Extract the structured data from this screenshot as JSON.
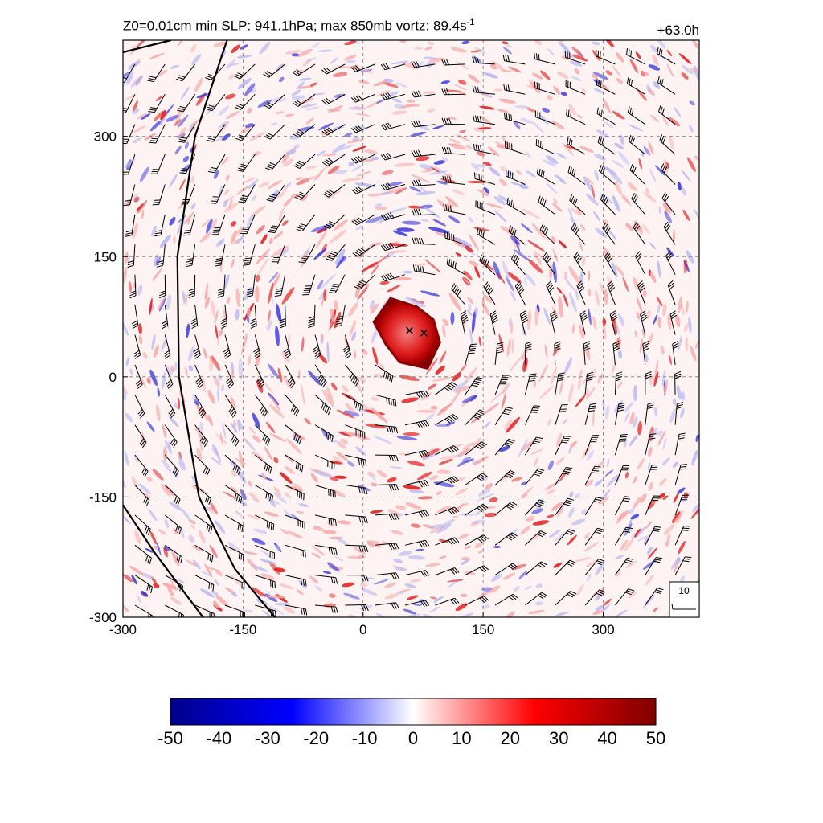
{
  "header": {
    "title_prefix": "Z0=0.01cm  min SLP: 941.1hPa; max 850mb vortz:  89.4s",
    "title_exponent": "-1",
    "time_label": "+63.0h"
  },
  "chart_data": {
    "type": "heatmap",
    "field": "vorticity",
    "xlim": [
      -300,
      420
    ],
    "ylim": [
      -300,
      420
    ],
    "x_ticks": [
      -300,
      -150,
      0,
      150,
      300
    ],
    "y_ticks": [
      -300,
      -150,
      0,
      150,
      300
    ],
    "x_tick_labels": [
      "-300",
      "-150",
      "0",
      "150",
      "300"
    ],
    "y_tick_labels": [
      "-300",
      "-150",
      "0",
      "150",
      "300"
    ],
    "grid": true,
    "storm_center_markers": [
      {
        "label": "×",
        "x": 58,
        "y": 58
      },
      {
        "label": "×",
        "x": 76,
        "y": 55
      }
    ],
    "eyewall_center": {
      "x": 57,
      "y": 55
    },
    "eyewall_radius": 48,
    "wind_barb_reference": "10",
    "coastlines": [
      {
        "name": "inner",
        "points": [
          [
            -170,
            420
          ],
          [
            -210,
            300
          ],
          [
            -232,
            150
          ],
          [
            -230,
            0
          ],
          [
            -205,
            -150
          ],
          [
            -160,
            -240
          ],
          [
            -110,
            -300
          ]
        ]
      },
      {
        "name": "outer",
        "points": [
          [
            -300,
            405
          ],
          [
            -240,
            420
          ]
        ]
      },
      {
        "name": "lower",
        "points": [
          [
            -300,
            -160
          ],
          [
            -260,
            -220
          ],
          [
            -200,
            -300
          ]
        ]
      }
    ],
    "colorbar": {
      "min": -50,
      "max": 50,
      "ticks": [
        -50,
        -40,
        -30,
        -20,
        -10,
        0,
        10,
        20,
        30,
        40,
        50
      ],
      "tick_labels": [
        "-50",
        "-40",
        "-30",
        "-20",
        "-10",
        "0",
        "10",
        "20",
        "30",
        "40",
        "50"
      ],
      "colors": [
        "#00008b",
        "#0000ff",
        "#ffffff",
        "#ff0000",
        "#7f0000"
      ]
    }
  }
}
